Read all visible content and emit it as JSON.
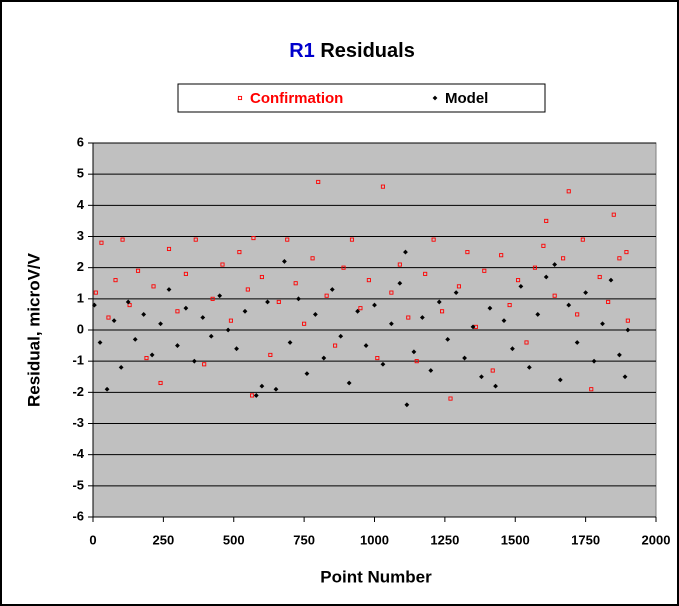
{
  "chart_data": {
    "type": "scatter",
    "title_parts": [
      "R1",
      "Residuals"
    ],
    "x_label": "Point Number",
    "y_label": "Residual, microV/V",
    "xlim": [
      0,
      2000
    ],
    "xticks": [
      0,
      250,
      500,
      750,
      1000,
      1250,
      1500,
      1750,
      2000
    ],
    "ylim": [
      -6,
      6
    ],
    "yticks": [
      -6,
      -5,
      -4,
      -3,
      -2,
      -1,
      0,
      1,
      2,
      3,
      4,
      5,
      6
    ],
    "grid": true,
    "series": [
      {
        "name": "Confirmation",
        "color": "#ff0000",
        "x": [
          10,
          30,
          55,
          80,
          105,
          130,
          160,
          190,
          215,
          240,
          270,
          300,
          330,
          365,
          395,
          425,
          460,
          490,
          520,
          550,
          570,
          565,
          600,
          630,
          660,
          690,
          720,
          750,
          780,
          800,
          830,
          860,
          890,
          920,
          950,
          980,
          1010,
          1030,
          1060,
          1090,
          1120,
          1150,
          1180,
          1210,
          1240,
          1270,
          1300,
          1330,
          1360,
          1390,
          1420,
          1450,
          1480,
          1510,
          1540,
          1570,
          1600,
          1610,
          1640,
          1670,
          1690,
          1720,
          1740,
          1770,
          1800,
          1830,
          1850,
          1870,
          1895,
          1900
        ],
        "values": [
          1.2,
          2.8,
          0.4,
          1.6,
          2.9,
          0.8,
          1.9,
          -0.9,
          1.4,
          -1.7,
          2.6,
          0.6,
          1.8,
          2.9,
          -1.1,
          1.0,
          2.1,
          0.3,
          2.5,
          1.3,
          2.95,
          -2.1,
          1.7,
          -0.8,
          0.9,
          2.9,
          1.5,
          0.2,
          2.3,
          4.75,
          1.1,
          -0.5,
          2.0,
          2.9,
          0.7,
          1.6,
          -0.9,
          4.6,
          1.2,
          2.1,
          0.4,
          -1.0,
          1.8,
          2.9,
          0.6,
          -2.2,
          1.4,
          2.5,
          0.1,
          1.9,
          -1.3,
          2.4,
          0.8,
          1.6,
          -0.4,
          2.0,
          2.7,
          3.5,
          1.1,
          2.3,
          4.45,
          0.5,
          2.9,
          -1.9,
          1.7,
          0.9,
          3.7,
          2.3,
          2.5,
          0.3
        ]
      },
      {
        "name": "Model",
        "color": "#000000",
        "x": [
          5,
          25,
          50,
          75,
          100,
          125,
          150,
          180,
          210,
          240,
          270,
          300,
          330,
          360,
          390,
          420,
          450,
          480,
          510,
          540,
          580,
          600,
          620,
          650,
          680,
          700,
          730,
          760,
          790,
          820,
          850,
          880,
          910,
          940,
          970,
          1000,
          1030,
          1060,
          1090,
          1110,
          1115,
          1140,
          1170,
          1200,
          1230,
          1260,
          1290,
          1320,
          1350,
          1380,
          1410,
          1430,
          1460,
          1490,
          1520,
          1550,
          1580,
          1610,
          1640,
          1660,
          1690,
          1720,
          1750,
          1780,
          1810,
          1840,
          1870,
          1890,
          1900
        ],
        "values": [
          0.8,
          -0.4,
          -1.9,
          0.3,
          -1.2,
          0.9,
          -0.3,
          0.5,
          -0.8,
          0.2,
          1.3,
          -0.5,
          0.7,
          -1.0,
          0.4,
          -0.2,
          1.1,
          0.0,
          -0.6,
          0.6,
          -2.1,
          -1.8,
          0.9,
          -1.9,
          2.2,
          -0.4,
          1.0,
          -1.4,
          0.5,
          -0.9,
          1.3,
          -0.2,
          -1.7,
          0.6,
          -0.5,
          0.8,
          -1.1,
          0.2,
          1.5,
          2.5,
          -2.4,
          -0.7,
          0.4,
          -1.3,
          0.9,
          -0.3,
          1.2,
          -0.9,
          0.1,
          -1.5,
          0.7,
          -1.8,
          0.3,
          -0.6,
          1.4,
          -1.2,
          0.5,
          1.7,
          2.1,
          -1.6,
          0.8,
          -0.4,
          1.2,
          -1.0,
          0.2,
          1.6,
          -0.8,
          -1.5,
          0.0
        ]
      }
    ]
  }
}
